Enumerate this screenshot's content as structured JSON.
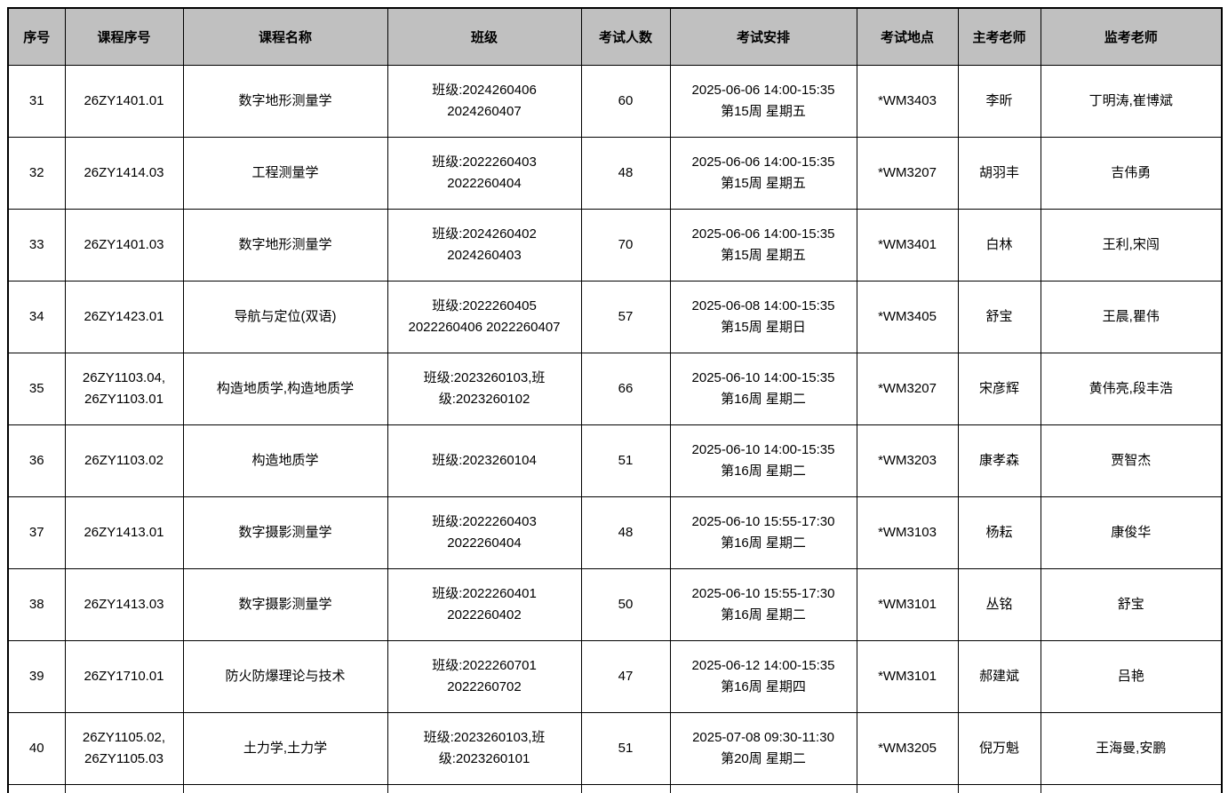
{
  "colors": {
    "header_background": "#c0c0c0",
    "border": "#000000",
    "text": "#000000",
    "row_background": "#ffffff"
  },
  "table": {
    "columns": [
      {
        "key": "index",
        "label": "序号"
      },
      {
        "key": "course_id",
        "label": "课程序号"
      },
      {
        "key": "course_name",
        "label": "课程名称"
      },
      {
        "key": "class",
        "label": "班级"
      },
      {
        "key": "exam_count",
        "label": "考试人数"
      },
      {
        "key": "schedule",
        "label": "考试安排"
      },
      {
        "key": "location",
        "label": "考试地点"
      },
      {
        "key": "chief_examiner",
        "label": "主考老师"
      },
      {
        "key": "invigilators",
        "label": "监考老师"
      }
    ],
    "rows": [
      {
        "index": "31",
        "course_id": "26ZY1401.01",
        "course_name": "数字地形测量学",
        "class": "班级:2024260406\n2024260407",
        "exam_count": "60",
        "schedule": "2025-06-06 14:00-15:35\n第15周 星期五",
        "location": "*WM3403",
        "chief_examiner": "李昕",
        "invigilators": "丁明涛,崔博斌"
      },
      {
        "index": "32",
        "course_id": "26ZY1414.03",
        "course_name": "工程测量学",
        "class": "班级:2022260403\n2022260404",
        "exam_count": "48",
        "schedule": "2025-06-06 14:00-15:35\n第15周 星期五",
        "location": "*WM3207",
        "chief_examiner": "胡羽丰",
        "invigilators": "吉伟勇"
      },
      {
        "index": "33",
        "course_id": "26ZY1401.03",
        "course_name": "数字地形测量学",
        "class": "班级:2024260402\n2024260403",
        "exam_count": "70",
        "schedule": "2025-06-06 14:00-15:35\n第15周 星期五",
        "location": "*WM3401",
        "chief_examiner": "白林",
        "invigilators": "王利,宋闯"
      },
      {
        "index": "34",
        "course_id": "26ZY1423.01",
        "course_name": "导航与定位(双语)",
        "class": "班级:2022260405\n2022260406 2022260407",
        "exam_count": "57",
        "schedule": "2025-06-08 14:00-15:35\n第15周 星期日",
        "location": "*WM3405",
        "chief_examiner": "舒宝",
        "invigilators": "王晨,瞿伟"
      },
      {
        "index": "35",
        "course_id": "26ZY1103.04,\n26ZY1103.01",
        "course_name": "构造地质学,构造地质学",
        "class": "班级:2023260103,班\n级:2023260102",
        "exam_count": "66",
        "schedule": "2025-06-10 14:00-15:35\n第16周 星期二",
        "location": "*WM3207",
        "chief_examiner": "宋彦辉",
        "invigilators": "黄伟亮,段丰浩"
      },
      {
        "index": "36",
        "course_id": "26ZY1103.02",
        "course_name": "构造地质学",
        "class": "班级:2023260104",
        "exam_count": "51",
        "schedule": "2025-06-10 14:00-15:35\n第16周 星期二",
        "location": "*WM3203",
        "chief_examiner": "康孝森",
        "invigilators": "贾智杰"
      },
      {
        "index": "37",
        "course_id": "26ZY1413.01",
        "course_name": "数字摄影测量学",
        "class": "班级:2022260403\n2022260404",
        "exam_count": "48",
        "schedule": "2025-06-10 15:55-17:30\n第16周 星期二",
        "location": "*WM3103",
        "chief_examiner": "杨耘",
        "invigilators": "康俊华"
      },
      {
        "index": "38",
        "course_id": "26ZY1413.03",
        "course_name": "数字摄影测量学",
        "class": "班级:2022260401\n2022260402",
        "exam_count": "50",
        "schedule": "2025-06-10 15:55-17:30\n第16周 星期二",
        "location": "*WM3101",
        "chief_examiner": "丛铭",
        "invigilators": "舒宝"
      },
      {
        "index": "39",
        "course_id": "26ZY1710.01",
        "course_name": "防火防爆理论与技术",
        "class": "班级:2022260701\n2022260702",
        "exam_count": "47",
        "schedule": "2025-06-12 14:00-15:35\n第16周 星期四",
        "location": "*WM3101",
        "chief_examiner": "郝建斌",
        "invigilators": "吕艳"
      },
      {
        "index": "40",
        "course_id": "26ZY1105.02,\n26ZY1105.03",
        "course_name": "土力学,土力学",
        "class": "班级:2023260103,班\n级:2023260101",
        "exam_count": "51",
        "schedule": "2025-07-08 09:30-11:30\n第20周 星期二",
        "location": "*WM3205",
        "chief_examiner": "倪万魁",
        "invigilators": "王海曼,安鹏"
      }
    ]
  }
}
